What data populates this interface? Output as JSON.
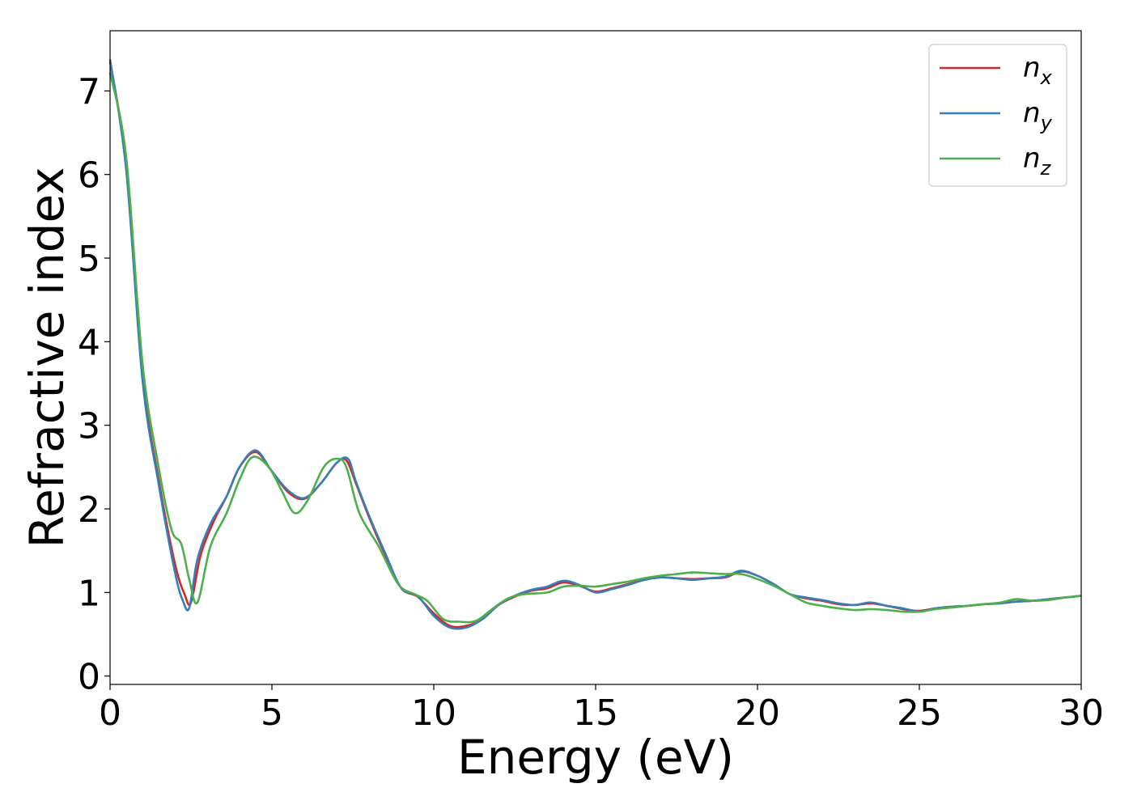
{
  "chart_data": {
    "type": "line",
    "xlabel": "Energy (eV)",
    "ylabel": "Refractive index",
    "xlim": [
      0,
      30
    ],
    "ylim": [
      -0.1,
      7.72
    ],
    "xticks": [
      "0",
      "5",
      "10",
      "15",
      "20",
      "25",
      "30"
    ],
    "yticks": [
      "0",
      "1",
      "2",
      "3",
      "4",
      "5",
      "6",
      "7"
    ],
    "grid": false,
    "legend_position": "top-right",
    "series": [
      {
        "name": "n_x",
        "legend_base": "n",
        "legend_sub": "x",
        "color": "#d62728",
        "x": [
          0,
          0.5,
          1.0,
          1.5,
          2.0,
          2.3,
          2.5,
          2.8,
          3.2,
          3.6,
          4.0,
          4.5,
          5.0,
          5.5,
          6.0,
          6.5,
          7.0,
          7.3,
          7.6,
          8.0,
          8.5,
          9.0,
          9.5,
          10.0,
          10.5,
          11.0,
          11.5,
          12.0,
          12.5,
          13.0,
          13.5,
          14.0,
          14.5,
          15.0,
          15.5,
          16.0,
          16.5,
          17.0,
          17.5,
          18.0,
          18.5,
          19.0,
          19.5,
          20.0,
          20.5,
          21.0,
          21.5,
          22.0,
          22.5,
          23.0,
          23.5,
          24.0,
          24.5,
          25.0,
          25.5,
          26.0,
          26.5,
          27.0,
          27.5,
          28.0,
          28.5,
          29.0,
          29.5,
          30.0
        ],
        "y": [
          7.35,
          6.1,
          3.6,
          2.35,
          1.35,
          0.98,
          0.88,
          1.45,
          1.85,
          2.15,
          2.5,
          2.68,
          2.45,
          2.2,
          2.12,
          2.3,
          2.55,
          2.58,
          2.3,
          1.9,
          1.45,
          1.05,
          0.95,
          0.75,
          0.6,
          0.6,
          0.68,
          0.85,
          0.95,
          1.02,
          1.05,
          1.12,
          1.08,
          1.01,
          1.05,
          1.1,
          1.15,
          1.18,
          1.17,
          1.16,
          1.17,
          1.18,
          1.25,
          1.2,
          1.1,
          0.98,
          0.93,
          0.9,
          0.86,
          0.85,
          0.87,
          0.84,
          0.8,
          0.78,
          0.81,
          0.83,
          0.84,
          0.86,
          0.87,
          0.89,
          0.9,
          0.92,
          0.94,
          0.96
        ]
      },
      {
        "name": "n_y",
        "legend_base": "n",
        "legend_sub": "y",
        "color": "#377eb8",
        "x": [
          0,
          0.5,
          1.0,
          1.5,
          2.0,
          2.25,
          2.45,
          2.7,
          3.1,
          3.6,
          4.0,
          4.5,
          5.0,
          5.5,
          6.0,
          6.5,
          7.0,
          7.35,
          7.6,
          8.0,
          8.5,
          9.0,
          9.5,
          10.0,
          10.5,
          11.0,
          11.5,
          12.0,
          12.5,
          13.0,
          13.5,
          14.0,
          14.5,
          15.0,
          15.5,
          16.0,
          16.5,
          17.0,
          17.5,
          18.0,
          18.5,
          19.0,
          19.5,
          20.0,
          20.5,
          21.0,
          21.5,
          22.0,
          22.5,
          23.0,
          23.5,
          24.0,
          24.5,
          25.0,
          25.5,
          26.0,
          26.5,
          27.0,
          27.5,
          28.0,
          28.5,
          29.0,
          29.5,
          30.0
        ],
        "y": [
          7.38,
          6.05,
          3.55,
          2.3,
          1.25,
          0.9,
          0.82,
          1.4,
          1.82,
          2.15,
          2.5,
          2.7,
          2.45,
          2.22,
          2.13,
          2.3,
          2.55,
          2.6,
          2.32,
          1.92,
          1.47,
          1.05,
          0.96,
          0.72,
          0.58,
          0.58,
          0.68,
          0.85,
          0.96,
          1.03,
          1.07,
          1.14,
          1.09,
          1.0,
          1.04,
          1.09,
          1.15,
          1.18,
          1.17,
          1.15,
          1.17,
          1.19,
          1.26,
          1.2,
          1.1,
          0.98,
          0.94,
          0.91,
          0.87,
          0.85,
          0.88,
          0.84,
          0.81,
          0.77,
          0.81,
          0.83,
          0.84,
          0.86,
          0.87,
          0.89,
          0.9,
          0.92,
          0.94,
          0.96
        ]
      },
      {
        "name": "n_z",
        "legend_base": "n",
        "legend_sub": "z",
        "color": "#4daf4a",
        "x": [
          0,
          0.5,
          1.0,
          1.5,
          1.9,
          2.2,
          2.45,
          2.7,
          3.1,
          3.6,
          4.0,
          4.4,
          4.9,
          5.3,
          5.7,
          6.1,
          6.6,
          7.0,
          7.3,
          7.7,
          8.3,
          8.9,
          9.4,
          9.8,
          10.3,
          10.8,
          11.3,
          11.8,
          12.3,
          12.8,
          13.5,
          14.0,
          14.5,
          15.0,
          15.5,
          16.0,
          16.5,
          17.0,
          17.5,
          18.0,
          18.5,
          19.0,
          19.5,
          20.0,
          20.5,
          21.0,
          21.5,
          22.0,
          22.5,
          23.0,
          23.5,
          24.0,
          24.5,
          25.0,
          25.5,
          26.0,
          26.5,
          27.0,
          27.5,
          28.0,
          28.5,
          29.0,
          29.5,
          30.0
        ],
        "y": [
          7.22,
          6.2,
          3.75,
          2.5,
          1.75,
          1.58,
          1.15,
          0.88,
          1.55,
          1.95,
          2.35,
          2.62,
          2.5,
          2.22,
          1.95,
          2.1,
          2.5,
          2.6,
          2.5,
          1.95,
          1.55,
          1.1,
          0.98,
          0.9,
          0.68,
          0.65,
          0.66,
          0.8,
          0.93,
          0.98,
          1.0,
          1.07,
          1.08,
          1.07,
          1.1,
          1.13,
          1.17,
          1.2,
          1.22,
          1.24,
          1.23,
          1.22,
          1.22,
          1.16,
          1.08,
          0.98,
          0.88,
          0.84,
          0.81,
          0.79,
          0.8,
          0.79,
          0.77,
          0.77,
          0.8,
          0.82,
          0.84,
          0.86,
          0.88,
          0.92,
          0.9,
          0.91,
          0.94,
          0.96
        ]
      }
    ]
  }
}
